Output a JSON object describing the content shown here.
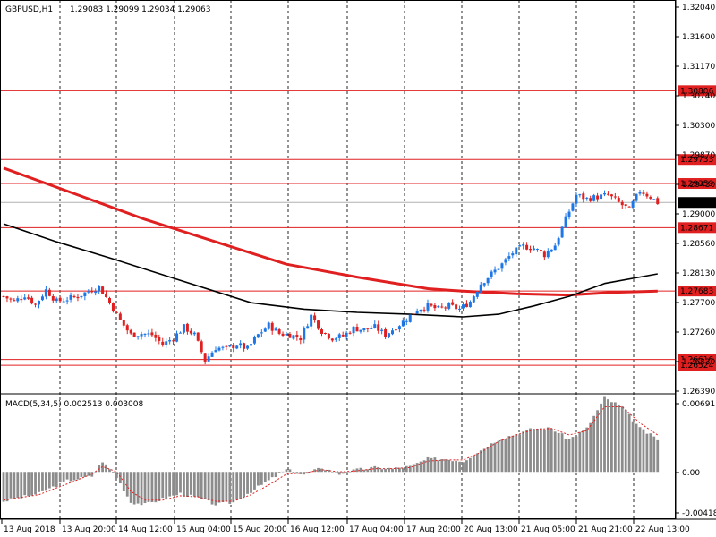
{
  "header": {
    "symbol": "GBPUSD,H1",
    "ohlc": "1.29083 1.29099 1.29034 1.29063"
  },
  "macd_header": "MACD(5,34,5) 0.002513 0.003008",
  "colors": {
    "background": "#ffffff",
    "bull": "#1e77e6",
    "bear": "#e02020",
    "ma_slow": "#e02020",
    "ma_fast": "#000000",
    "level_line": "#e02020",
    "histogram": "#8c8c8c",
    "signal": "#e02020",
    "grid": "#000000"
  },
  "chart_data": [
    {
      "type": "candlestick",
      "ylim": [
        1.2608,
        1.3222
      ],
      "price_ticks": [
        "1.32040",
        "1.31600",
        "1.31170",
        "1.30740",
        "1.30300",
        "1.29870",
        "1.29430",
        "1.29000",
        "1.28560",
        "1.28130",
        "1.27700",
        "1.27260",
        "1.26830",
        "1.26390"
      ],
      "x_tick_labels": [
        "13 Aug 2018",
        "13 Aug 20:00",
        "14 Aug 12:00",
        "15 Aug 04:00",
        "15 Aug 20:00",
        "16 Aug 12:00",
        "17 Aug 04:00",
        "17 Aug 20:00",
        "20 Aug 13:00",
        "21 Aug 05:00",
        "21 Aug 21:00",
        "22 Aug 13:00"
      ],
      "horizontal_levels": [
        1.30806,
        1.29733,
        1.29359,
        1.28671,
        1.27683,
        1.26616,
        1.26524
      ],
      "current_price": 1.29063,
      "keypoints": [
        [
          0,
          1.276
        ],
        [
          3,
          1.2752
        ],
        [
          6,
          1.2762
        ],
        [
          9,
          1.2747
        ],
        [
          12,
          1.277
        ],
        [
          15,
          1.2752
        ],
        [
          18,
          1.2756
        ],
        [
          21,
          1.276
        ],
        [
          24,
          1.2768
        ],
        [
          27,
          1.2775
        ],
        [
          30,
          1.275
        ],
        [
          33,
          1.2722
        ],
        [
          36,
          1.27
        ],
        [
          39,
          1.2702
        ],
        [
          42,
          1.27
        ],
        [
          45,
          1.2685
        ],
        [
          48,
          1.2695
        ],
        [
          51,
          1.2712
        ],
        [
          54,
          1.27
        ],
        [
          57,
          1.266
        ],
        [
          60,
          1.268
        ],
        [
          63,
          1.2678
        ],
        [
          66,
          1.2685
        ],
        [
          69,
          1.2678
        ],
        [
          72,
          1.27
        ],
        [
          75,
          1.2715
        ],
        [
          78,
          1.2702
        ],
        [
          81,
          1.27
        ],
        [
          84,
          1.2695
        ],
        [
          87,
          1.273
        ],
        [
          90,
          1.2706
        ],
        [
          93,
          1.2695
        ],
        [
          96,
          1.2698
        ],
        [
          99,
          1.271
        ],
        [
          102,
          1.2708
        ],
        [
          105,
          1.2712
        ],
        [
          108,
          1.27
        ],
        [
          111,
          1.2712
        ],
        [
          114,
          1.2725
        ],
        [
          117,
          1.274
        ],
        [
          120,
          1.2745
        ],
        [
          123,
          1.274
        ],
        [
          126,
          1.2745
        ],
        [
          129,
          1.274
        ],
        [
          132,
          1.2752
        ],
        [
          135,
          1.278
        ],
        [
          138,
          1.2795
        ],
        [
          141,
          1.281
        ],
        [
          144,
          1.2828
        ],
        [
          147,
          1.2838
        ],
        [
          150,
          1.2835
        ],
        [
          153,
          1.2825
        ],
        [
          156,
          1.284
        ],
        [
          159,
          1.288
        ],
        [
          162,
          1.2918
        ],
        [
          165,
          1.2912
        ],
        [
          168,
          1.2915
        ],
        [
          171,
          1.2918
        ],
        [
          174,
          1.2906
        ],
        [
          177,
          1.2895
        ],
        [
          180,
          1.2925
        ],
        [
          183,
          1.2915
        ],
        [
          185,
          1.2906
        ]
      ],
      "ma_slow": {
        "name": "",
        "points": [
          [
            0,
            1.296
          ],
          [
            20,
            1.292
          ],
          [
            40,
            1.288
          ],
          [
            60,
            1.2845
          ],
          [
            80,
            1.281
          ],
          [
            100,
            1.279
          ],
          [
            120,
            1.2772
          ],
          [
            130,
            1.2768
          ],
          [
            145,
            1.2764
          ],
          [
            160,
            1.2762
          ],
          [
            172,
            1.2766
          ],
          [
            185,
            1.2768
          ]
        ]
      },
      "ma_fast": {
        "name": "",
        "points": [
          [
            0,
            1.2873
          ],
          [
            15,
            1.2845
          ],
          [
            30,
            1.282
          ],
          [
            50,
            1.2785
          ],
          [
            70,
            1.275
          ],
          [
            85,
            1.274
          ],
          [
            100,
            1.2735
          ],
          [
            115,
            1.2732
          ],
          [
            130,
            1.2728
          ],
          [
            140,
            1.2732
          ],
          [
            150,
            1.2745
          ],
          [
            160,
            1.276
          ],
          [
            170,
            1.278
          ],
          [
            185,
            1.2795
          ]
        ]
      }
    },
    {
      "type": "bar",
      "ylim": [
        -0.00435,
        0.00711
      ],
      "y_ticks": [
        "0.00691",
        "0.00",
        "-0.004181"
      ],
      "histogram_keypoints": [
        [
          0,
          -0.0027
        ],
        [
          10,
          -0.002
        ],
        [
          18,
          -0.0008
        ],
        [
          25,
          -0.0004
        ],
        [
          28,
          0.001
        ],
        [
          32,
          -0.0005
        ],
        [
          36,
          -0.0028
        ],
        [
          40,
          -0.003
        ],
        [
          45,
          -0.0025
        ],
        [
          50,
          -0.002
        ],
        [
          55,
          -0.0024
        ],
        [
          60,
          -0.003
        ],
        [
          65,
          -0.0028
        ],
        [
          70,
          -0.0018
        ],
        [
          75,
          -0.0008
        ],
        [
          80,
          0.0002
        ],
        [
          85,
          -0.0003
        ],
        [
          90,
          0.0004
        ],
        [
          95,
          -0.0002
        ],
        [
          100,
          0.0002
        ],
        [
          105,
          0.0004
        ],
        [
          110,
          0.0003
        ],
        [
          115,
          0.0005
        ],
        [
          120,
          0.0012
        ],
        [
          125,
          0.0012
        ],
        [
          130,
          0.001
        ],
        [
          135,
          0.002
        ],
        [
          140,
          0.003
        ],
        [
          145,
          0.0035
        ],
        [
          150,
          0.004
        ],
        [
          155,
          0.004
        ],
        [
          160,
          0.003
        ],
        [
          165,
          0.004
        ],
        [
          170,
          0.0068
        ],
        [
          175,
          0.006
        ],
        [
          180,
          0.004
        ],
        [
          185,
          0.003
        ]
      ],
      "signal_keypoints": [
        [
          0,
          -0.0026
        ],
        [
          10,
          -0.0021
        ],
        [
          18,
          -0.0011
        ],
        [
          25,
          -0.0002
        ],
        [
          28,
          0.0005
        ],
        [
          32,
          0.0
        ],
        [
          36,
          -0.0018
        ],
        [
          40,
          -0.0026
        ],
        [
          45,
          -0.0026
        ],
        [
          50,
          -0.0022
        ],
        [
          55,
          -0.0023
        ],
        [
          60,
          -0.0027
        ],
        [
          65,
          -0.0027
        ],
        [
          70,
          -0.0021
        ],
        [
          75,
          -0.0012
        ],
        [
          80,
          -0.0002
        ],
        [
          85,
          -0.0001
        ],
        [
          90,
          0.0002
        ],
        [
          95,
          0.0
        ],
        [
          100,
          0.0001
        ],
        [
          105,
          0.0003
        ],
        [
          110,
          0.0003
        ],
        [
          115,
          0.0004
        ],
        [
          120,
          0.001
        ],
        [
          125,
          0.0011
        ],
        [
          130,
          0.0011
        ],
        [
          135,
          0.0018
        ],
        [
          140,
          0.0028
        ],
        [
          145,
          0.0034
        ],
        [
          150,
          0.0039
        ],
        [
          155,
          0.004
        ],
        [
          160,
          0.0034
        ],
        [
          165,
          0.0038
        ],
        [
          170,
          0.006
        ],
        [
          175,
          0.006
        ],
        [
          180,
          0.0045
        ],
        [
          185,
          0.0034
        ]
      ]
    }
  ]
}
